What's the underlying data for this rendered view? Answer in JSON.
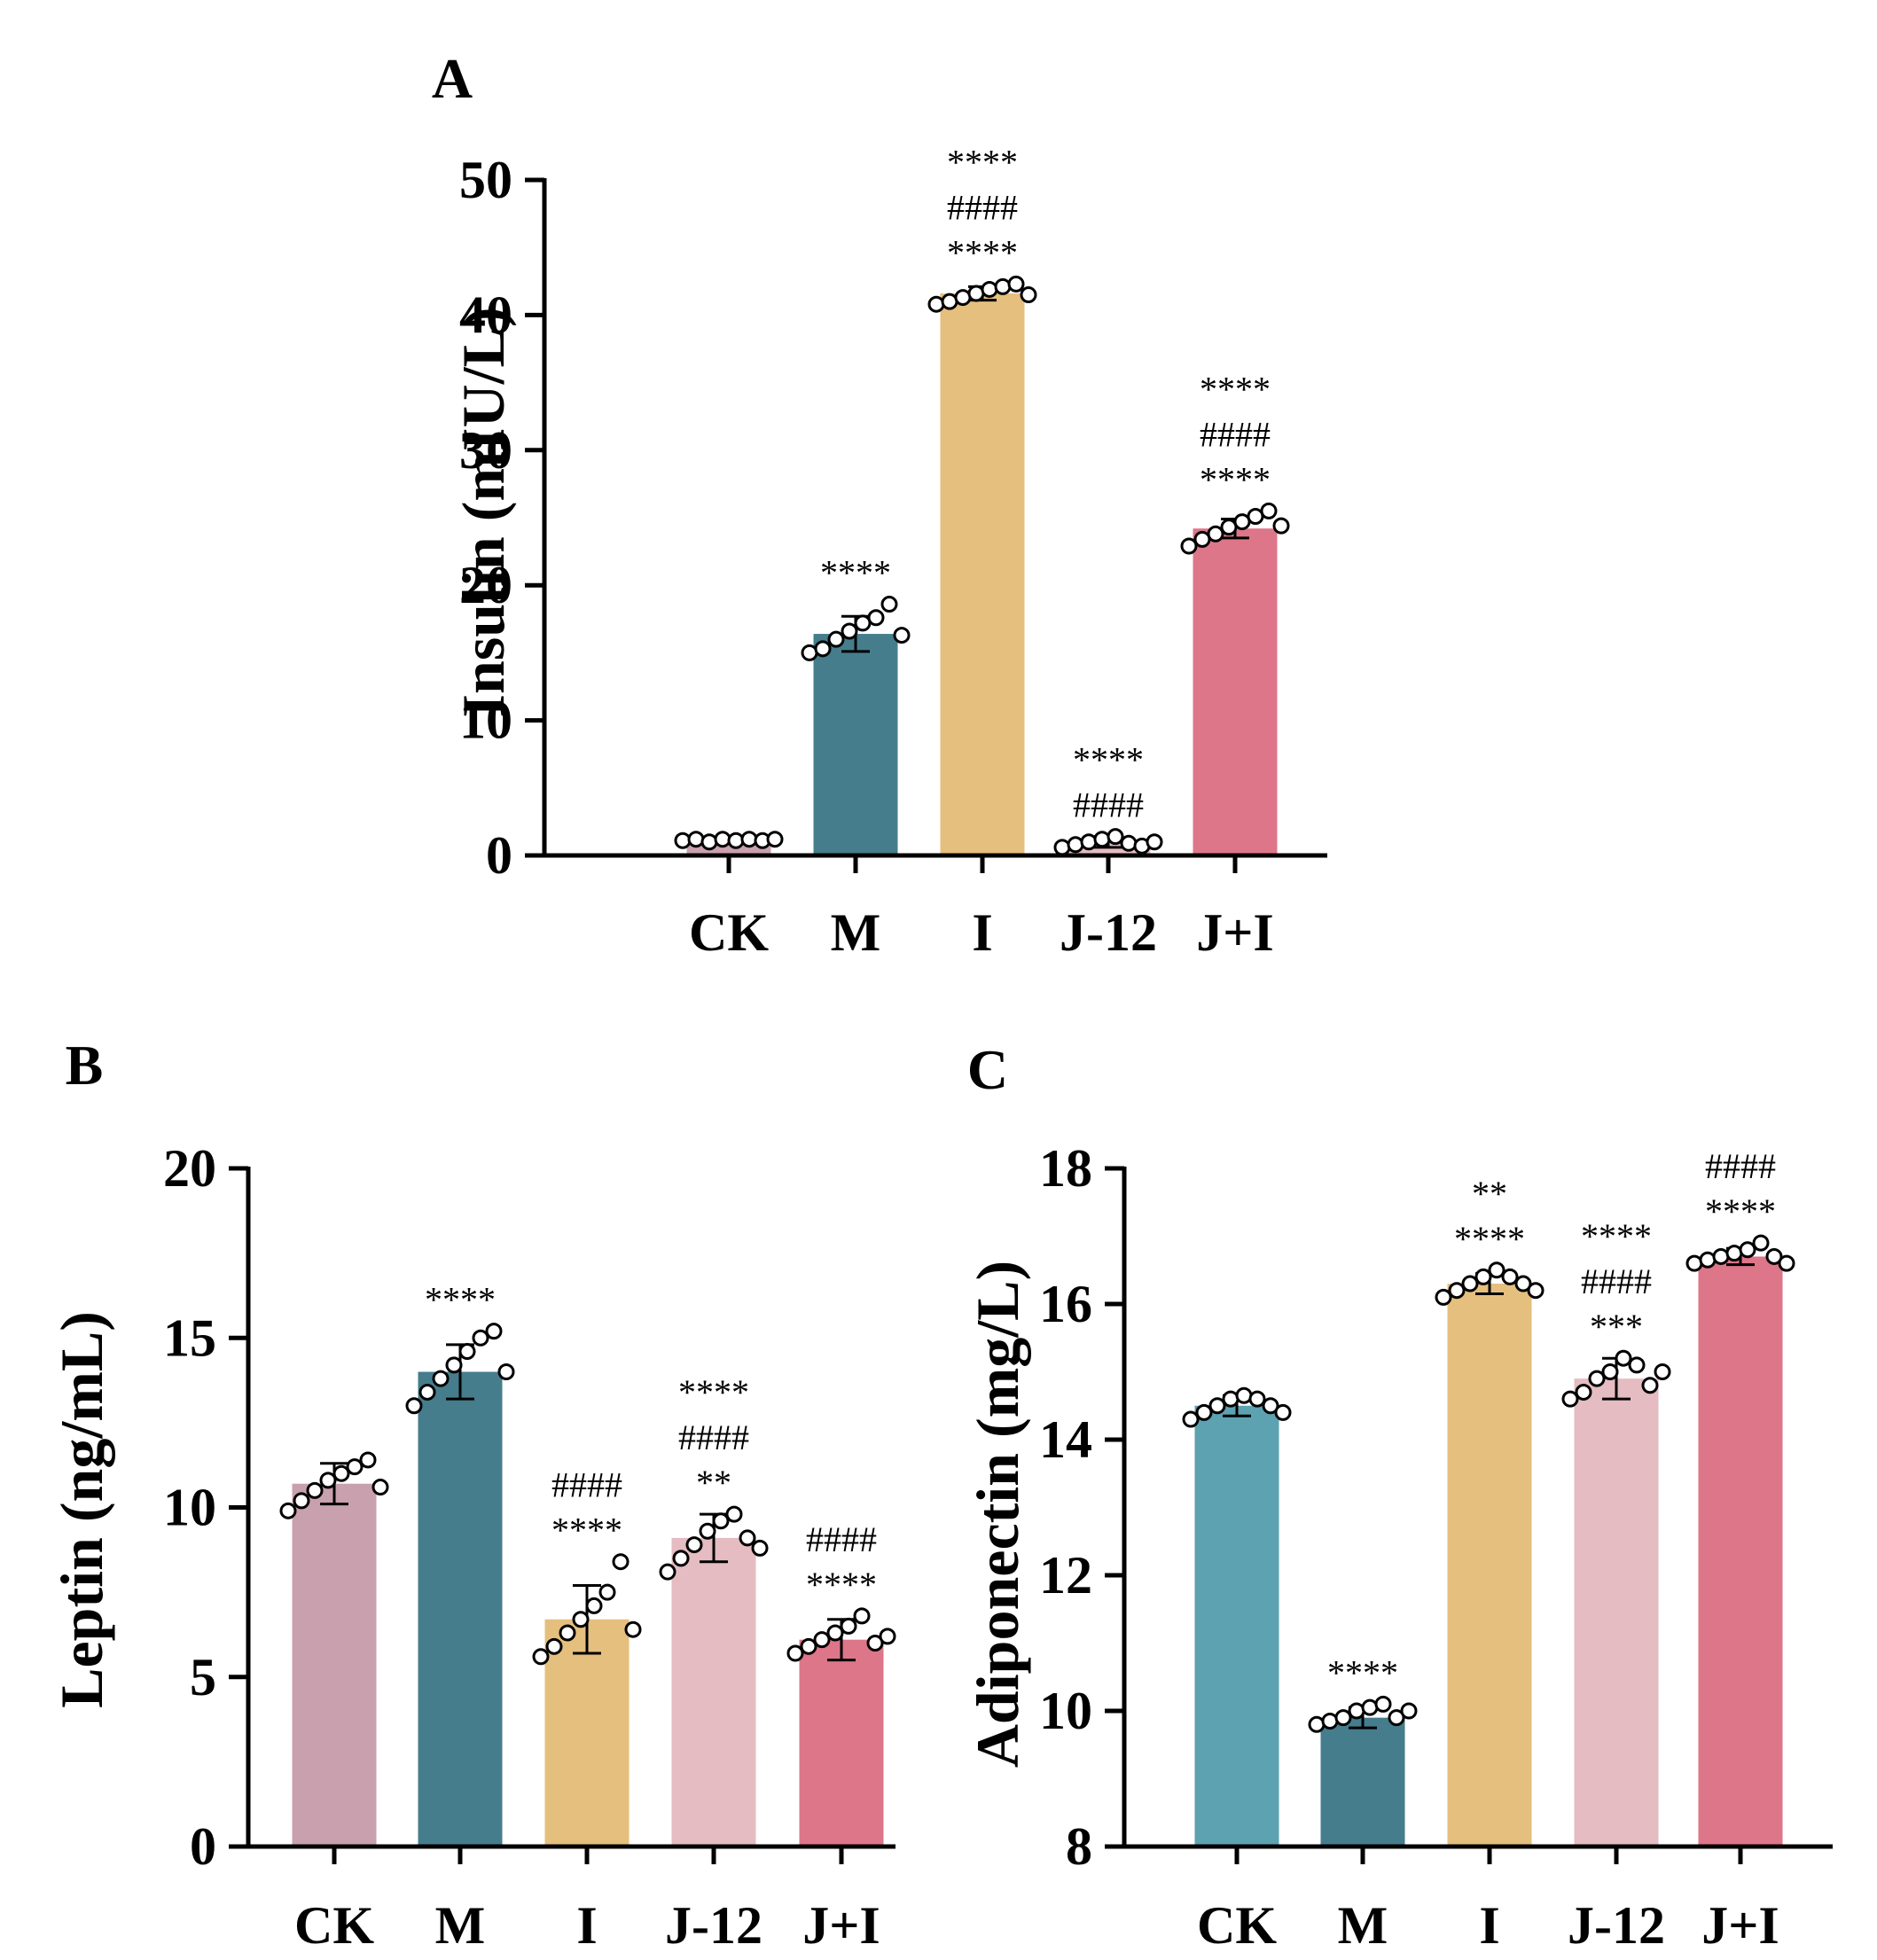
{
  "chart_data": [
    {
      "panel": "A",
      "type": "bar",
      "ylabel": "Insulin (mIU/L)",
      "xlabel": "",
      "ylim": [
        0,
        50
      ],
      "yticks": [
        0,
        10,
        20,
        30,
        40,
        50
      ],
      "categories": [
        "CK",
        "M",
        "I",
        "J-12",
        "J+I"
      ],
      "values": [
        1.1,
        16.4,
        41.6,
        1.0,
        24.2
      ],
      "errors": [
        0.2,
        1.3,
        0.5,
        0.4,
        0.7
      ],
      "colors": [
        "#C9A0AE",
        "#457D8C",
        "#E5BF7E",
        "#E4BCC2",
        "#DD7689"
      ],
      "points": [
        [
          1.1,
          1.2,
          1.0,
          1.2,
          1.1,
          1.2,
          1.1,
          1.2
        ],
        [
          15.0,
          15.3,
          16.0,
          16.6,
          17.2,
          17.6,
          18.6,
          16.3
        ],
        [
          40.8,
          41.0,
          41.3,
          41.6,
          41.9,
          42.1,
          42.3,
          41.5
        ],
        [
          0.6,
          0.8,
          1.0,
          1.2,
          1.4,
          0.9,
          0.7,
          1.0
        ],
        [
          22.9,
          23.4,
          23.8,
          24.3,
          24.7,
          25.1,
          25.5,
          24.4
        ]
      ],
      "sig": [
        [],
        [
          "****"
        ],
        [
          "****",
          "####",
          "****"
        ],
        [
          "####",
          "****"
        ],
        [
          "****",
          "####",
          "****"
        ]
      ]
    },
    {
      "panel": "B",
      "type": "bar",
      "ylabel": "Leptin (ng/mL)",
      "xlabel": "",
      "ylim": [
        0,
        20
      ],
      "yticks": [
        0,
        5,
        10,
        15,
        20
      ],
      "categories": [
        "CK",
        "M",
        "I",
        "J-12",
        "J+I"
      ],
      "values": [
        10.7,
        14.0,
        6.7,
        9.1,
        6.1
      ],
      "errors": [
        0.6,
        0.8,
        1.0,
        0.7,
        0.6
      ],
      "colors": [
        "#C9A0AE",
        "#457D8C",
        "#E5BF7E",
        "#E4BCC2",
        "#DD7689"
      ],
      "points": [
        [
          9.9,
          10.2,
          10.5,
          10.8,
          11.0,
          11.2,
          11.4,
          10.6
        ],
        [
          13.0,
          13.4,
          13.8,
          14.2,
          14.6,
          15.0,
          15.2,
          14.0
        ],
        [
          5.6,
          5.9,
          6.3,
          6.7,
          7.1,
          7.5,
          8.4,
          6.4
        ],
        [
          8.1,
          8.5,
          8.9,
          9.3,
          9.6,
          9.8,
          9.1,
          8.8
        ],
        [
          5.7,
          5.9,
          6.1,
          6.3,
          6.5,
          6.8,
          6.0,
          6.2
        ]
      ],
      "sig": [
        [],
        [
          "****"
        ],
        [
          "****",
          "####"
        ],
        [
          "**",
          "####",
          "****"
        ],
        [
          "****",
          "####"
        ]
      ]
    },
    {
      "panel": "C",
      "type": "bar",
      "ylabel": "Adiponectin (mg/L)",
      "xlabel": "",
      "ylim": [
        8,
        18
      ],
      "yticks": [
        8,
        10,
        12,
        14,
        16,
        18
      ],
      "categories": [
        "CK",
        "M",
        "I",
        "J-12",
        "J+I"
      ],
      "values": [
        14.5,
        9.9,
        16.3,
        14.9,
        16.7
      ],
      "errors": [
        0.15,
        0.15,
        0.15,
        0.3,
        0.12
      ],
      "colors": [
        "#5CA2B0",
        "#457D8C",
        "#E5BF7E",
        "#E4BCC2",
        "#DD7689"
      ],
      "points": [
        [
          14.3,
          14.4,
          14.5,
          14.6,
          14.65,
          14.6,
          14.5,
          14.4
        ],
        [
          9.8,
          9.85,
          9.9,
          10.0,
          10.05,
          10.1,
          9.9,
          10.0
        ],
        [
          16.1,
          16.2,
          16.3,
          16.4,
          16.5,
          16.4,
          16.3,
          16.2
        ],
        [
          14.6,
          14.7,
          14.9,
          15.0,
          15.2,
          15.1,
          14.8,
          15.0
        ],
        [
          16.6,
          16.65,
          16.7,
          16.75,
          16.8,
          16.9,
          16.7,
          16.6
        ]
      ],
      "sig": [
        [],
        [
          "****"
        ],
        [
          "****",
          "**"
        ],
        [
          "***",
          "####",
          "****"
        ],
        [
          "****",
          "####"
        ]
      ]
    }
  ]
}
